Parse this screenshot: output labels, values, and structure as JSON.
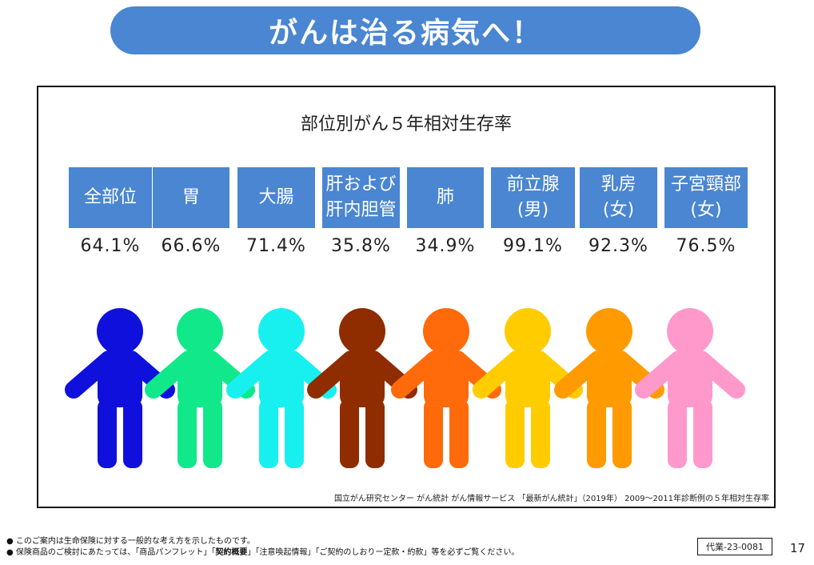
{
  "header": {
    "title": "がんは治る病気へ！"
  },
  "chart": {
    "title": "部位別がん５年相対生存率",
    "source": "国立がん研究センター がん統計 がん情報サービス 「最新がん統計」（2019年） 2009～2011年診断例の５年相対生存率"
  },
  "chart_data": {
    "type": "table",
    "title": "部位別がん５年相対生存率",
    "categories": [
      "全部位",
      "胃",
      "大腸",
      "肝および\n肝内胆管",
      "肺",
      "前立腺\n(男)",
      "乳房\n(女)",
      "子宮頸部\n(女)"
    ],
    "series": [
      {
        "values": [
          64.1,
          66.6,
          71.4,
          35.8,
          34.9,
          99.1,
          92.3,
          76.5
        ]
      }
    ],
    "labels": [
      "64.1%",
      "66.6%",
      "71.4%",
      "35.8%",
      "34.9%",
      "99.1%",
      "92.3%",
      "76.5%"
    ],
    "colors": [
      "#1010dd",
      "#10e88a",
      "#18f0f0",
      "#8f2c00",
      "#ff6a0a",
      "#ffcc00",
      "#ff9a00",
      "#ff99cc"
    ]
  },
  "footer": {
    "note1": "●  このご案内は生命保険に対する一般的な考え方を示したものです。",
    "note2_a": "●  保険商品のご検討にあたっては、「商品パンフレット」「",
    "note2_b": "契約概要",
    "note2_c": "」「注意喚起情報」「ご契約のしおりー定款・約款」等を必ずご覧ください。",
    "code": "代業-23-0081",
    "page": "17"
  }
}
